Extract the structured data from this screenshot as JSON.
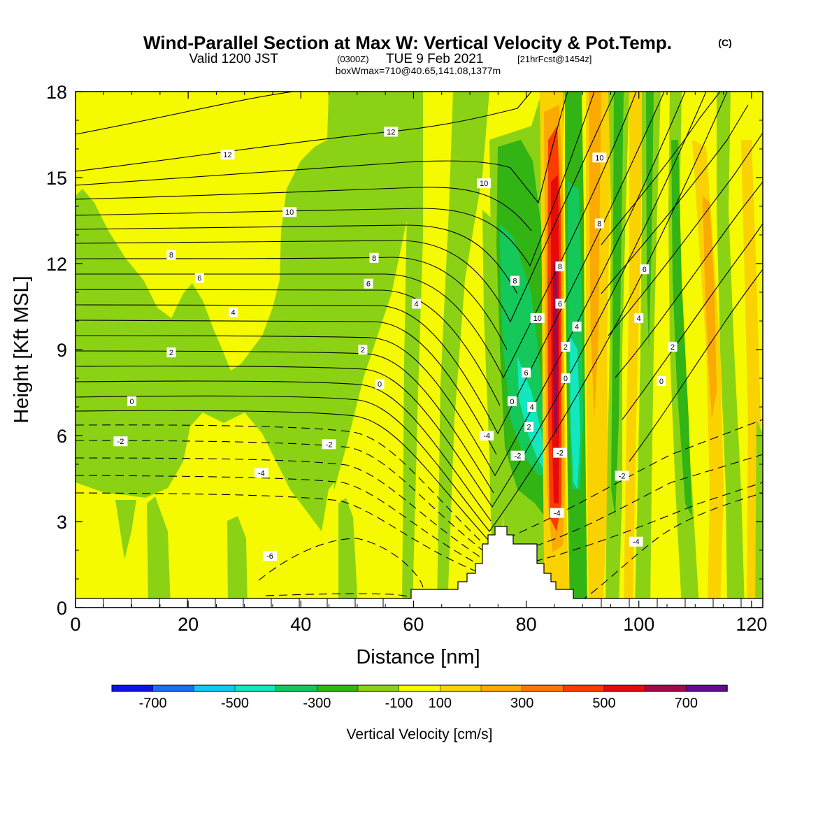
{
  "title": {
    "main": "Wind-Parallel Section at Max W: Vertical Velocity & Pot.Temp.",
    "copyright": "(C)",
    "valid_prefix": "Valid 1200 JST",
    "valid_utc": "(0300Z)",
    "valid_date": "TUE 9 Feb 2021",
    "forecast": "[21hrFcst@1454z]",
    "box_info": "boxWmax=710@40.65,141.08,1377m"
  },
  "chart_data": {
    "type": "heatmap",
    "xlabel": "Distance [nm]",
    "ylabel": "Height [Kft MSL]",
    "xlim": [
      0,
      122
    ],
    "ylim": [
      0,
      18
    ],
    "x_ticks": [
      0,
      20,
      40,
      60,
      80,
      100,
      120
    ],
    "x_tick_labels": [
      "0",
      "20",
      "40",
      "60",
      "80",
      "100",
      "120"
    ],
    "y_ticks": [
      0,
      3,
      6,
      9,
      12,
      15,
      18
    ],
    "y_tick_labels": [
      "0",
      "3",
      "6",
      "9",
      "12",
      "15",
      "18"
    ],
    "colorbar": {
      "title": "Vertical Velocity [cm/s]",
      "levels": [
        -800,
        -700,
        -600,
        -500,
        -400,
        -300,
        -200,
        -100,
        100,
        200,
        300,
        400,
        500,
        600,
        700,
        800
      ],
      "colors": [
        "#0a14e6",
        "#1e6ef0",
        "#14c8f0",
        "#14e6be",
        "#14c85a",
        "#32b414",
        "#8cd214",
        "#f5fa00",
        "#fad200",
        "#faaa00",
        "#fa7800",
        "#fa3c00",
        "#e60a0a",
        "#a00a46",
        "#640a8c"
      ],
      "tick_values": [
        -700,
        -500,
        -300,
        -100,
        100,
        300,
        500,
        700
      ],
      "tick_labels": [
        "-700",
        "-500",
        "-300",
        "-100",
        "100",
        "300",
        "500",
        "700"
      ]
    },
    "contour_labels": [
      {
        "text": "12",
        "x": 56,
        "y": 16.6
      },
      {
        "text": "12",
        "x": 27,
        "y": 15.8
      },
      {
        "text": "10",
        "x": 38,
        "y": 13.8
      },
      {
        "text": "10",
        "x": 72.5,
        "y": 14.8
      },
      {
        "text": "10",
        "x": 93,
        "y": 15.7
      },
      {
        "text": "8",
        "x": 17,
        "y": 12.3
      },
      {
        "text": "8",
        "x": 53,
        "y": 12.2
      },
      {
        "text": "8",
        "x": 93,
        "y": 13.4
      },
      {
        "text": "8",
        "x": 78,
        "y": 11.4
      },
      {
        "text": "8",
        "x": 86,
        "y": 11.9
      },
      {
        "text": "6",
        "x": 22,
        "y": 11.5
      },
      {
        "text": "6",
        "x": 52,
        "y": 11.3
      },
      {
        "text": "6",
        "x": 101,
        "y": 11.8
      },
      {
        "text": "6",
        "x": 86,
        "y": 10.6
      },
      {
        "text": "4",
        "x": 28,
        "y": 10.3
      },
      {
        "text": "4",
        "x": 60.5,
        "y": 10.6
      },
      {
        "text": "4",
        "x": 100,
        "y": 10.1
      },
      {
        "text": "4",
        "x": 89,
        "y": 9.8
      },
      {
        "text": "2",
        "x": 17,
        "y": 8.9
      },
      {
        "text": "2",
        "x": 51,
        "y": 9.0
      },
      {
        "text": "2",
        "x": 106,
        "y": 9.1
      },
      {
        "text": "2",
        "x": 87,
        "y": 9.1
      },
      {
        "text": "0",
        "x": 10,
        "y": 7.2
      },
      {
        "text": "0",
        "x": 54,
        "y": 7.8
      },
      {
        "text": "0",
        "x": 104,
        "y": 7.9
      },
      {
        "text": "0",
        "x": 87,
        "y": 8.0
      },
      {
        "text": "10",
        "x": 82,
        "y": 10.1
      },
      {
        "text": "6",
        "x": 80,
        "y": 8.2
      },
      {
        "text": "0",
        "x": 77.5,
        "y": 7.2
      },
      {
        "text": "4",
        "x": 81,
        "y": 7.0
      },
      {
        "text": "2",
        "x": 80.5,
        "y": 6.3
      },
      {
        "text": "-2",
        "x": 8,
        "y": 5.8
      },
      {
        "text": "-2",
        "x": 45,
        "y": 5.7
      },
      {
        "text": "-2",
        "x": 97,
        "y": 4.6
      },
      {
        "text": "-2",
        "x": 78.5,
        "y": 5.3
      },
      {
        "text": "-2",
        "x": 86,
        "y": 5.4
      },
      {
        "text": "-4",
        "x": 33,
        "y": 4.7
      },
      {
        "text": "-4",
        "x": 73,
        "y": 6.0
      },
      {
        "text": "-4",
        "x": 99.5,
        "y": 2.3
      },
      {
        "text": "-4",
        "x": 85.5,
        "y": 3.3
      },
      {
        "text": "-6",
        "x": 34.5,
        "y": 1.8
      }
    ]
  }
}
